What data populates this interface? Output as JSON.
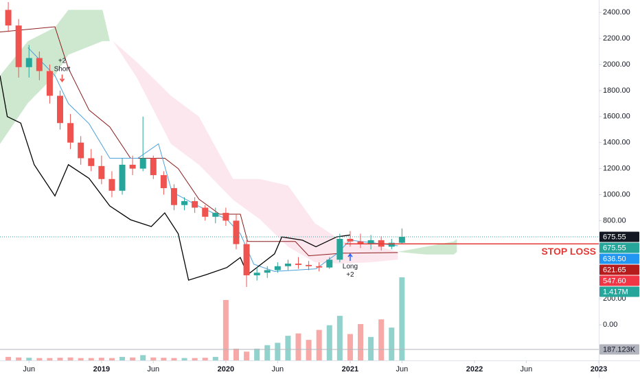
{
  "chart_data": {
    "type": "candlestick",
    "xlim": [
      2.2,
      60
    ],
    "ylim": [
      -274,
      2496
    ],
    "xticks": [
      {
        "value": 5,
        "label": "Jun"
      },
      {
        "value": 12,
        "label": "2019"
      },
      {
        "value": 17,
        "label": "Jun"
      },
      {
        "value": 24,
        "label": "2020"
      },
      {
        "value": 29,
        "label": "Jun"
      },
      {
        "value": 36,
        "label": "2021"
      },
      {
        "value": 41,
        "label": "Jun"
      },
      {
        "value": 48,
        "label": "2022"
      },
      {
        "value": 53,
        "label": "Jun"
      },
      {
        "value": 60,
        "label": "2023"
      }
    ],
    "yticks": [
      {
        "value": 0,
        "label": "0.00"
      },
      {
        "value": 200,
        "label": "200.00"
      },
      {
        "value": 800,
        "label": "800.00"
      },
      {
        "value": 1000,
        "label": "1000.00"
      },
      {
        "value": 1200,
        "label": "1200.00"
      },
      {
        "value": 1400,
        "label": "1400.00"
      },
      {
        "value": 1600,
        "label": "1600.00"
      },
      {
        "value": 1800,
        "label": "1800.00"
      },
      {
        "value": 2000,
        "label": "2000.00"
      },
      {
        "value": 2200,
        "label": "2200.00"
      },
      {
        "value": 2400,
        "label": "2400.00"
      }
    ],
    "up_color": "#26a69a",
    "down_color": "#ef5350",
    "candles": {
      "x": [
        3,
        4,
        5,
        6,
        7,
        8,
        9,
        10,
        11,
        12,
        13,
        14,
        15,
        16,
        17,
        18,
        19,
        20,
        21,
        22,
        23,
        24,
        25,
        26,
        27,
        28,
        29,
        30,
        31,
        32,
        33,
        34,
        35,
        36,
        37,
        38,
        39,
        40,
        41
      ],
      "open": [
        2420,
        2300,
        1980,
        2050,
        1950,
        1760,
        1550,
        1400,
        1280,
        1220,
        1120,
        1030,
        1230,
        1200,
        1280,
        1150,
        1050,
        920,
        950,
        900,
        830,
        860,
        800,
        620,
        380,
        400,
        420,
        450,
        470,
        460,
        450,
        440,
        500,
        660,
        640,
        620,
        650,
        600,
        630
      ],
      "high": [
        2480,
        2350,
        2150,
        2100,
        2000,
        1800,
        1620,
        1450,
        1350,
        1300,
        1180,
        1280,
        1300,
        1600,
        1300,
        1180,
        1080,
        980,
        980,
        920,
        900,
        900,
        850,
        650,
        440,
        450,
        480,
        500,
        520,
        490,
        480,
        520,
        700,
        720,
        700,
        690,
        680,
        660,
        740
      ],
      "low": [
        2250,
        1900,
        1900,
        1880,
        1700,
        1500,
        1350,
        1230,
        1180,
        1080,
        980,
        1000,
        1150,
        1180,
        1120,
        1000,
        880,
        880,
        860,
        800,
        780,
        760,
        580,
        290,
        340,
        360,
        400,
        420,
        430,
        420,
        410,
        430,
        480,
        600,
        590,
        580,
        570,
        580,
        620
      ],
      "close": [
        2300,
        1980,
        2050,
        1950,
        1760,
        1550,
        1400,
        1280,
        1220,
        1120,
        1030,
        1230,
        1200,
        1280,
        1150,
        1050,
        920,
        950,
        900,
        830,
        860,
        800,
        620,
        380,
        400,
        420,
        450,
        470,
        460,
        450,
        440,
        500,
        660,
        640,
        620,
        650,
        600,
        630,
        675.55
      ]
    },
    "volume": {
      "ylim": [
        0,
        6147000
      ],
      "values": [
        60000,
        50000,
        45000,
        40000,
        40000,
        45000,
        50000,
        40000,
        40000,
        45000,
        40000,
        60000,
        50000,
        90000,
        50000,
        45000,
        40000,
        40000,
        40000,
        45000,
        60000,
        1030000,
        200000,
        150000,
        200000,
        260000,
        300000,
        420000,
        460000,
        350000,
        520000,
        600000,
        760000,
        450000,
        620000,
        400000,
        700000,
        560000,
        1417000
      ],
      "value_labels": [
        null,
        null,
        null,
        null,
        null,
        null,
        null,
        null,
        null,
        null,
        null,
        null,
        null,
        null,
        null,
        null,
        null,
        null,
        null,
        null,
        null,
        null,
        null,
        null,
        null,
        null,
        null,
        null,
        null,
        null,
        null,
        null,
        null,
        null,
        null,
        null,
        null,
        null,
        "1.417M"
      ],
      "label_color": "#26a69a",
      "average": {
        "value": 187123,
        "label": "187.123K",
        "color": "#b2b5be",
        "text_color": "#131722"
      }
    },
    "clouds": [
      {
        "color": "#a5d6a7",
        "opacity": 0.55,
        "x": [
          2.2,
          4.9,
          7.5,
          8.8,
          12.1,
          12.8
        ],
        "upper": [
          1915,
          2180,
          2285,
          2420,
          2420,
          2180
        ],
        "lower": [
          1390,
          1705,
          1915,
          2075,
          2180,
          2180
        ]
      },
      {
        "color": "#f8bbd0",
        "opacity": 0.35,
        "x": [
          13.1,
          15.4,
          18.7,
          21.4,
          24.7,
          27.3,
          30,
          32.6,
          35.3,
          37.9,
          40.6
        ],
        "upper": [
          2180,
          2020,
          1760,
          1600,
          1120,
          1120,
          1070,
          780,
          640,
          620,
          560
        ],
        "lower": [
          2180,
          1900,
          1390,
          1230,
          960,
          810,
          600,
          480,
          470,
          480,
          500
        ]
      },
      {
        "color": "#a5d6a7",
        "opacity": 0.55,
        "x": [
          40.6,
          43.3,
          46,
          46.3
        ],
        "upper": [
          560,
          600,
          640,
          660
        ],
        "lower": [
          560,
          540,
          540,
          560
        ]
      }
    ],
    "lines": [
      {
        "color": "#8b1a1a",
        "width": 1,
        "x": [
          2.2,
          7.5,
          8.8,
          10.8,
          12.8,
          14.8,
          18.1,
          19.4,
          21.4,
          23.4,
          25.4,
          26.1,
          30.7,
          32,
          35.3,
          40.6
        ],
        "values": [
          2250,
          2290,
          1970,
          1650,
          1520,
          1280,
          1280,
          1200,
          965,
          850,
          850,
          640,
          640,
          530,
          550,
          555
        ]
      },
      {
        "color": "#4ea1dc",
        "width": 1,
        "x": [
          4.9,
          7.5,
          8.8,
          10.8,
          12.8,
          15.5,
          17.5,
          18.8,
          21.4,
          24.1,
          25.4,
          26.7,
          28.7,
          32.7,
          34.7,
          36,
          40.6
        ],
        "values": [
          2130,
          1915,
          1700,
          1545,
          1280,
          1280,
          1390,
          1020,
          910,
          810,
          700,
          465,
          410,
          430,
          545,
          650,
          607
        ]
      },
      {
        "color": "#000000",
        "width": 1.3,
        "x": [
          2.2,
          2.9,
          4.2,
          5.5,
          7.5,
          8.8,
          10.8,
          12.8,
          14.8,
          16.8,
          18.1,
          19.4,
          20.4,
          22.1,
          24.1,
          25.4,
          26.1,
          28.7,
          29.4,
          31.4,
          32.7,
          34.7,
          36
        ],
        "values": [
          1915,
          1600,
          1550,
          1230,
          990,
          1230,
          1125,
          913,
          807,
          755,
          860,
          700,
          343,
          385,
          440,
          517,
          385,
          545,
          675,
          650,
          600,
          675,
          690
        ]
      }
    ],
    "last_price": {
      "value": 675.55,
      "color": "#26a69a"
    },
    "stop_loss": {
      "label": "STOP LOSS",
      "value": 621.65,
      "x_start": 35.5,
      "color": "#e53935"
    },
    "annotations": [
      {
        "label_lines": [
          "+2",
          "Short"
        ],
        "x": 8.2,
        "value": 1870,
        "direction": "down",
        "color": "#ef5350"
      },
      {
        "label_lines": [
          "Long",
          "+2"
        ],
        "x": 36,
        "value": 543,
        "direction": "up",
        "color": "#2962ff"
      }
    ],
    "price_labels": [
      {
        "value": 675.55,
        "label": "675.55",
        "color": "#131722",
        "text_color": "#ffffff"
      },
      {
        "value": 675.55,
        "label": "675.55",
        "color": "#26a69a",
        "text_color": "#ffffff"
      },
      {
        "value": 636.5,
        "label": "636.50",
        "color": "#2196f3",
        "text_color": "#ffffff"
      },
      {
        "value": 621.65,
        "label": "621.65",
        "color": "#b71c1c",
        "text_color": "#ffffff"
      },
      {
        "value": 547.6,
        "label": "547.60",
        "color": "#f23645",
        "text_color": "#ffffff"
      }
    ]
  }
}
